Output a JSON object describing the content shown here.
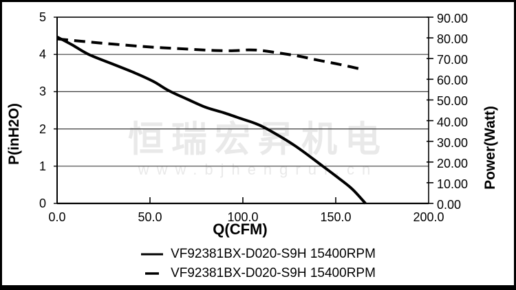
{
  "watermark": {
    "line1": "恒瑞宏昇机电",
    "line2": "www.bjhengrui.cn",
    "color": "#e9e9e9"
  },
  "chart_data": {
    "type": "line",
    "title": "",
    "xlabel": "Q(CFM)",
    "ylabel_left": "P(inH2O)",
    "ylabel_right": "Power(Watt)",
    "grid": true,
    "legend_position": "bottom",
    "x_axis": {
      "min": 0,
      "max": 200,
      "tick_values": [
        0,
        50,
        100,
        150,
        200
      ],
      "tick_labels": [
        "0.0",
        "50.0",
        "100.0",
        "150.0",
        "200.0"
      ]
    },
    "y_axis_left": {
      "min": 0,
      "max": 5,
      "tick_values": [
        0,
        1,
        2,
        3,
        4,
        5
      ],
      "tick_labels": [
        "0",
        "1",
        "2",
        "3",
        "4",
        "5"
      ]
    },
    "y_axis_right": {
      "min": 0,
      "max": 90,
      "tick_values": [
        0,
        10,
        20,
        30,
        40,
        50,
        60,
        70,
        80,
        90
      ],
      "tick_labels": [
        "0.00",
        "10.00",
        "20.00",
        "30.00",
        "40.00",
        "50.00",
        "60.00",
        "70.00",
        "80.00",
        "90.00"
      ]
    },
    "series": [
      {
        "name": "VF92381BX-D020-S9H 15400RPM",
        "line_style": "solid",
        "y_axis": "left",
        "color": "#000000",
        "points": [
          [
            0,
            4.47
          ],
          [
            8,
            4.26
          ],
          [
            17,
            4.0
          ],
          [
            30,
            3.74
          ],
          [
            42,
            3.5
          ],
          [
            52,
            3.27
          ],
          [
            60,
            3.03
          ],
          [
            70,
            2.8
          ],
          [
            80,
            2.58
          ],
          [
            90,
            2.43
          ],
          [
            100,
            2.26
          ],
          [
            106,
            2.16
          ],
          [
            113,
            2.0
          ],
          [
            128,
            1.55
          ],
          [
            143,
            1.0
          ],
          [
            151,
            0.7
          ],
          [
            159,
            0.38
          ],
          [
            166,
            0
          ]
        ]
      },
      {
        "name": "VF92381BX-D020-S9H 15400RPM",
        "line_style": "dashed",
        "y_axis": "right",
        "color": "#000000",
        "points": [
          [
            0,
            79.5
          ],
          [
            15,
            78.2
          ],
          [
            30,
            77.0
          ],
          [
            50,
            75.6
          ],
          [
            70,
            74.6
          ],
          [
            85,
            73.9
          ],
          [
            95,
            73.8
          ],
          [
            103,
            74.2
          ],
          [
            110,
            73.9
          ],
          [
            120,
            72.6
          ],
          [
            130,
            71.2
          ],
          [
            140,
            69.3
          ],
          [
            152,
            67.2
          ],
          [
            164,
            64.8
          ]
        ]
      }
    ]
  }
}
